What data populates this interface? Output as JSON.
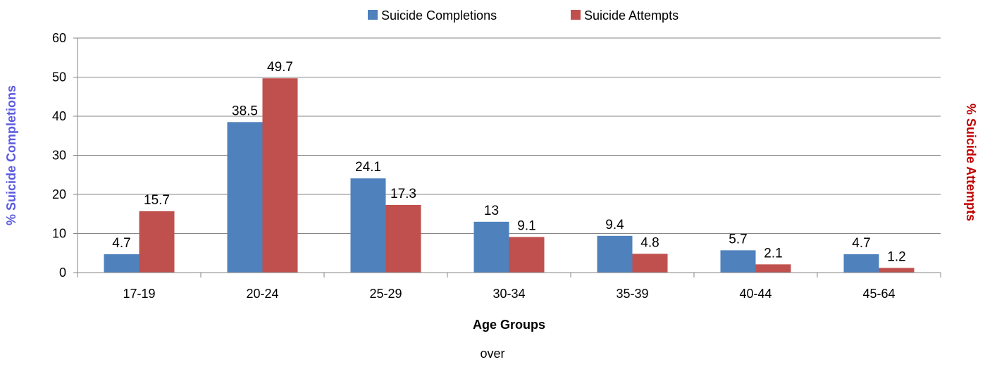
{
  "chart_data": {
    "type": "bar",
    "title": "",
    "categories": [
      "17-19",
      "20-24",
      "25-29",
      "30-34",
      "35-39",
      "40-44",
      "45-64"
    ],
    "series": [
      {
        "name": "Suicide Completions",
        "values": [
          4.7,
          38.5,
          24.1,
          13,
          9.4,
          5.7,
          4.7
        ],
        "color": "#4F81BD"
      },
      {
        "name": "Suicide Attempts",
        "values": [
          15.7,
          49.7,
          17.3,
          9.1,
          4.8,
          2.1,
          1.2
        ],
        "color": "#C0504D"
      }
    ],
    "xlabel": "Age Groups",
    "ylabel_left": "% Suicide Completions",
    "ylabel_right": "% Suicide Attempts",
    "ylabel_left_color": "#5B5BE0",
    "ylabel_right_color": "#C00000",
    "ylim": [
      0,
      60
    ],
    "yticks": [
      0,
      10,
      20,
      30,
      40,
      50,
      60
    ],
    "grid": true,
    "legend_position": "top-center",
    "footnote": "over"
  }
}
